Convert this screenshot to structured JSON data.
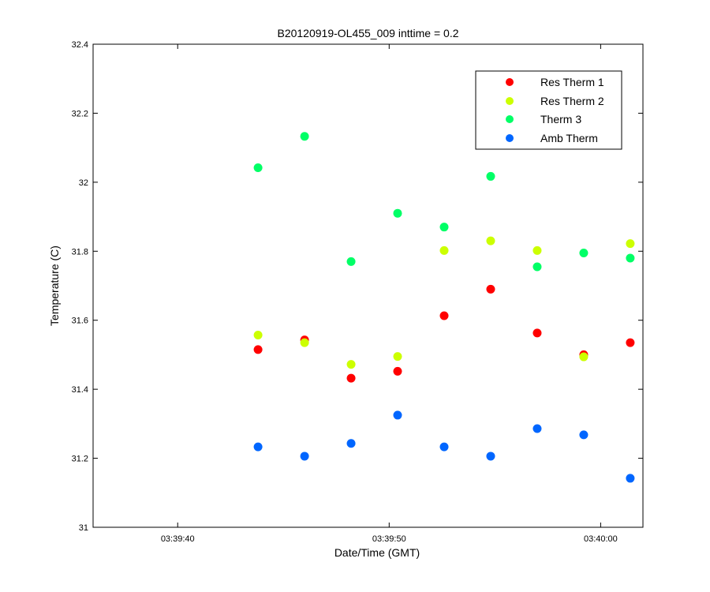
{
  "chart_data": {
    "type": "scatter",
    "title": "B20120919-OL455_009 inttime = 0.2",
    "xlabel": "Date/Time (GMT)",
    "ylabel": "Temperature (C)",
    "x_axis": {
      "kind": "time",
      "range": [
        "03:39:36",
        "03:40:02"
      ],
      "ticks": [
        "03:39:40",
        "03:39:50",
        "03:40:00"
      ]
    },
    "y_axis": {
      "range": [
        31,
        32.4
      ],
      "ticks": [
        "31",
        "31.2",
        "31.4",
        "31.6",
        "31.8",
        "32",
        "32.2",
        "32.4"
      ]
    },
    "grid": false,
    "legend_position": "top-right",
    "x": [
      "03:39:43.8",
      "03:39:46.0",
      "03:39:48.2",
      "03:39:50.4",
      "03:39:52.6",
      "03:39:54.8",
      "03:39:57.0",
      "03:39:59.2",
      "03:40:01.4"
    ],
    "series": [
      {
        "name": "Res Therm 1",
        "color": "#ff0000",
        "values": [
          31.515,
          31.543,
          31.432,
          31.452,
          31.613,
          31.69,
          31.563,
          31.5,
          31.535
        ]
      },
      {
        "name": "Res Therm 2",
        "color": "#ccff00",
        "values": [
          31.557,
          31.535,
          31.472,
          31.495,
          31.802,
          31.83,
          31.802,
          31.494,
          31.822
        ]
      },
      {
        "name": "Therm 3",
        "color": "#00ff66",
        "values": [
          32.042,
          32.133,
          31.77,
          31.91,
          31.87,
          32.017,
          31.755,
          31.795,
          31.78
        ]
      },
      {
        "name": "Amb Therm",
        "color": "#0066ff",
        "values": [
          31.233,
          31.206,
          31.243,
          31.325,
          31.233,
          31.206,
          31.286,
          31.268,
          31.142
        ]
      }
    ]
  }
}
